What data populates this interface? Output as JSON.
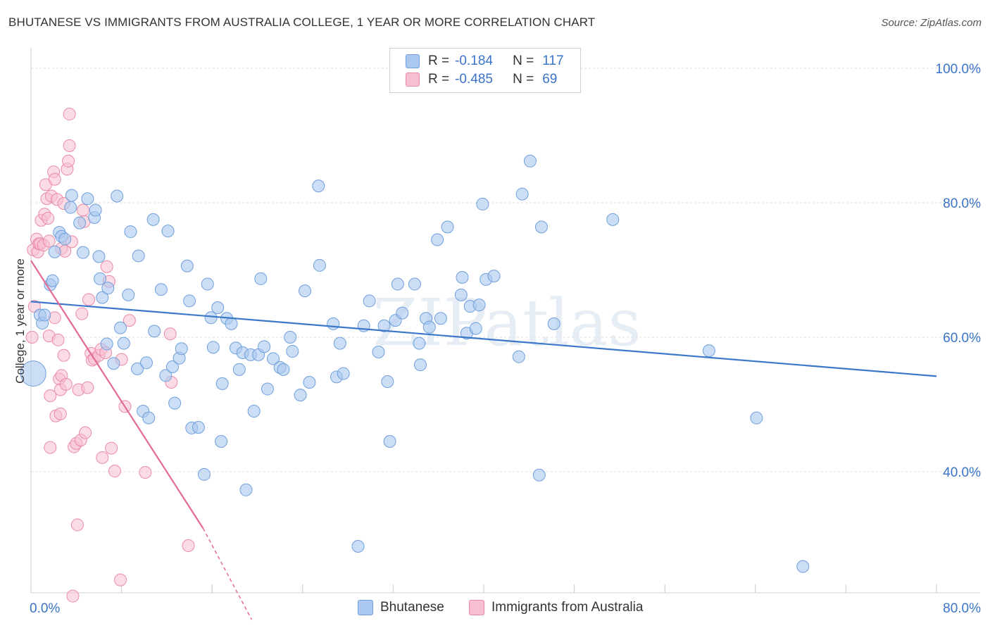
{
  "title": "BHUTANESE VS IMMIGRANTS FROM AUSTRALIA COLLEGE, 1 YEAR OR MORE CORRELATION CHART",
  "source": "Source: ZipAtlas.com",
  "watermark": "ZIPatlas",
  "legend": {
    "r_label": "R =",
    "n_label": "N =",
    "rows": [
      {
        "r": "-0.184",
        "n": "117",
        "fill": "#aac8ef",
        "stroke": "#6f9fdc"
      },
      {
        "r": "-0.485",
        "n": "69",
        "fill": "#f7bfd0",
        "stroke": "#ea8aa8"
      }
    ]
  },
  "bottom_legend": [
    "Bhutanese",
    "Immigrants from Australia"
  ],
  "chart_data": {
    "type": "scatter",
    "title": "BHUTANESE VS IMMIGRANTS FROM AUSTRALIA COLLEGE, 1 YEAR OR MORE CORRELATION CHART",
    "ylabel": "College, 1 year or more",
    "xlabel": "",
    "xlim": [
      0,
      80
    ],
    "ylim": [
      18,
      102
    ],
    "x_tick_labels": [
      "0.0%",
      "80.0%"
    ],
    "y_tick_labels": [
      "100.0%",
      "80.0%",
      "60.0%",
      "40.0%"
    ],
    "y_ticks": [
      100,
      80,
      60,
      40
    ],
    "grid": true,
    "legend_position": "top-center",
    "colors": {
      "blue_fill": "#aac8ef",
      "blue_stroke": "#6f9fdc",
      "blue_line": "#3b78c8",
      "pink_fill": "#f7bfd0",
      "pink_stroke": "#ea8aa8",
      "pink_line": "#e26a97",
      "tick_text": "#3a73c8"
    },
    "series": [
      {
        "name": "Bhutanese",
        "r": -0.184,
        "n": 117,
        "trend": {
          "x0": 0,
          "y0": 65.3,
          "x1": 80,
          "y1": 54.2
        },
        "points": [
          [
            0.2,
            54.6
          ],
          [
            0.8,
            63.3
          ],
          [
            1.0,
            62.1
          ],
          [
            1.2,
            63.3
          ],
          [
            1.7,
            67.8
          ],
          [
            1.9,
            68.4
          ],
          [
            2.1,
            72.7
          ],
          [
            2.5,
            75.6
          ],
          [
            2.7,
            75.0
          ],
          [
            3.0,
            74.6
          ],
          [
            3.5,
            79.3
          ],
          [
            3.6,
            81.1
          ],
          [
            4.3,
            77.0
          ],
          [
            4.6,
            72.6
          ],
          [
            5.0,
            80.6
          ],
          [
            5.6,
            77.8
          ],
          [
            5.7,
            78.9
          ],
          [
            6.0,
            72.0
          ],
          [
            6.1,
            68.7
          ],
          [
            6.3,
            65.9
          ],
          [
            6.7,
            59.0
          ],
          [
            6.8,
            67.3
          ],
          [
            7.3,
            56.1
          ],
          [
            7.6,
            81.0
          ],
          [
            7.9,
            61.4
          ],
          [
            8.2,
            59.1
          ],
          [
            8.6,
            66.3
          ],
          [
            8.8,
            75.7
          ],
          [
            9.4,
            55.3
          ],
          [
            9.5,
            72.1
          ],
          [
            9.9,
            49.0
          ],
          [
            10.2,
            56.2
          ],
          [
            10.4,
            48.0
          ],
          [
            10.8,
            77.5
          ],
          [
            10.9,
            60.9
          ],
          [
            11.5,
            67.1
          ],
          [
            11.9,
            54.3
          ],
          [
            12.1,
            75.8
          ],
          [
            12.5,
            55.6
          ],
          [
            12.7,
            50.2
          ],
          [
            13.1,
            56.9
          ],
          [
            13.3,
            58.3
          ],
          [
            13.8,
            70.6
          ],
          [
            14.0,
            65.4
          ],
          [
            14.2,
            46.5
          ],
          [
            14.8,
            46.6
          ],
          [
            15.3,
            39.6
          ],
          [
            15.6,
            67.9
          ],
          [
            15.9,
            62.9
          ],
          [
            16.1,
            58.5
          ],
          [
            16.5,
            64.4
          ],
          [
            16.8,
            44.5
          ],
          [
            16.9,
            53.1
          ],
          [
            17.3,
            62.8
          ],
          [
            17.7,
            62.0
          ],
          [
            18.1,
            58.4
          ],
          [
            18.4,
            55.2
          ],
          [
            18.7,
            57.7
          ],
          [
            19.0,
            37.3
          ],
          [
            19.4,
            57.4
          ],
          [
            19.7,
            49.0
          ],
          [
            20.1,
            57.4
          ],
          [
            20.3,
            68.7
          ],
          [
            20.6,
            58.6
          ],
          [
            20.9,
            52.3
          ],
          [
            21.4,
            56.8
          ],
          [
            22.0,
            55.5
          ],
          [
            22.3,
            55.2
          ],
          [
            22.9,
            60.0
          ],
          [
            23.1,
            57.9
          ],
          [
            23.8,
            51.4
          ],
          [
            24.2,
            66.9
          ],
          [
            24.6,
            53.3
          ],
          [
            25.4,
            82.5
          ],
          [
            25.5,
            70.7
          ],
          [
            26.7,
            62.0
          ],
          [
            27.0,
            54.1
          ],
          [
            27.3,
            59.1
          ],
          [
            27.6,
            54.6
          ],
          [
            28.9,
            28.9
          ],
          [
            29.4,
            61.7
          ],
          [
            29.9,
            65.4
          ],
          [
            30.7,
            57.8
          ],
          [
            31.2,
            61.7
          ],
          [
            31.5,
            53.4
          ],
          [
            31.7,
            44.5
          ],
          [
            32.2,
            62.5
          ],
          [
            32.4,
            67.9
          ],
          [
            32.8,
            63.6
          ],
          [
            33.9,
            67.9
          ],
          [
            34.3,
            59.1
          ],
          [
            34.4,
            55.9
          ],
          [
            34.9,
            62.8
          ],
          [
            35.2,
            61.5
          ],
          [
            35.9,
            74.5
          ],
          [
            36.2,
            62.8
          ],
          [
            36.8,
            76.4
          ],
          [
            38.0,
            66.3
          ],
          [
            38.1,
            68.9
          ],
          [
            38.5,
            60.6
          ],
          [
            38.8,
            64.6
          ],
          [
            39.3,
            61.3
          ],
          [
            39.6,
            64.8
          ],
          [
            39.9,
            79.8
          ],
          [
            40.2,
            68.6
          ],
          [
            40.9,
            69.1
          ],
          [
            43.1,
            57.1
          ],
          [
            43.4,
            81.3
          ],
          [
            44.1,
            86.2
          ],
          [
            44.9,
            39.5
          ],
          [
            45.1,
            76.4
          ],
          [
            46.2,
            62.0
          ],
          [
            51.4,
            77.5
          ],
          [
            59.9,
            58.0
          ],
          [
            64.1,
            48.0
          ],
          [
            68.2,
            25.9
          ]
        ],
        "sizes": {
          "0": 36
        }
      },
      {
        "name": "Immigrants from Australia",
        "r": -0.485,
        "n": 69,
        "trend": {
          "x0": 0,
          "y0": 71.4,
          "x1": 15.2,
          "y1": 31.6,
          "dash_to_x": 19.5,
          "dash_to_y": 18.0
        },
        "points": [
          [
            0.1,
            60.0
          ],
          [
            0.2,
            73.0
          ],
          [
            0.3,
            64.6
          ],
          [
            0.5,
            74.6
          ],
          [
            0.6,
            72.7
          ],
          [
            0.7,
            73.9
          ],
          [
            0.8,
            73.9
          ],
          [
            0.9,
            77.4
          ],
          [
            1.1,
            73.7
          ],
          [
            1.2,
            78.3
          ],
          [
            1.3,
            82.7
          ],
          [
            1.4,
            80.6
          ],
          [
            1.5,
            77.7
          ],
          [
            1.6,
            74.3
          ],
          [
            1.6,
            60.2
          ],
          [
            1.7,
            51.3
          ],
          [
            1.7,
            43.6
          ],
          [
            1.8,
            81.0
          ],
          [
            2.0,
            84.6
          ],
          [
            2.1,
            83.5
          ],
          [
            2.1,
            62.9
          ],
          [
            2.2,
            48.3
          ],
          [
            2.3,
            80.5
          ],
          [
            2.4,
            59.6
          ],
          [
            2.5,
            53.8
          ],
          [
            2.6,
            52.2
          ],
          [
            2.6,
            48.6
          ],
          [
            2.7,
            73.2
          ],
          [
            2.7,
            54.3
          ],
          [
            2.9,
            79.9
          ],
          [
            2.9,
            57.3
          ],
          [
            3.0,
            72.8
          ],
          [
            3.1,
            53.0
          ],
          [
            3.2,
            85.0
          ],
          [
            3.3,
            86.2
          ],
          [
            3.4,
            88.5
          ],
          [
            3.4,
            93.2
          ],
          [
            3.6,
            74.2
          ],
          [
            3.7,
            21.5
          ],
          [
            3.8,
            43.7
          ],
          [
            4.0,
            44.2
          ],
          [
            4.1,
            32.1
          ],
          [
            4.2,
            52.2
          ],
          [
            4.4,
            44.7
          ],
          [
            4.5,
            63.5
          ],
          [
            4.6,
            78.9
          ],
          [
            4.7,
            77.2
          ],
          [
            4.8,
            45.8
          ],
          [
            5.0,
            52.5
          ],
          [
            5.1,
            65.6
          ],
          [
            5.3,
            57.6
          ],
          [
            5.4,
            56.6
          ],
          [
            5.6,
            56.8
          ],
          [
            6.0,
            57.3
          ],
          [
            6.2,
            58.2
          ],
          [
            6.3,
            42.1
          ],
          [
            6.6,
            57.7
          ],
          [
            6.7,
            70.5
          ],
          [
            6.9,
            68.3
          ],
          [
            7.1,
            43.5
          ],
          [
            7.4,
            40.1
          ],
          [
            7.9,
            23.9
          ],
          [
            8.0,
            56.7
          ],
          [
            8.3,
            49.7
          ],
          [
            8.7,
            62.5
          ],
          [
            10.1,
            39.9
          ],
          [
            12.3,
            60.5
          ],
          [
            12.4,
            53.3
          ],
          [
            13.9,
            29.0
          ]
        ]
      }
    ]
  }
}
